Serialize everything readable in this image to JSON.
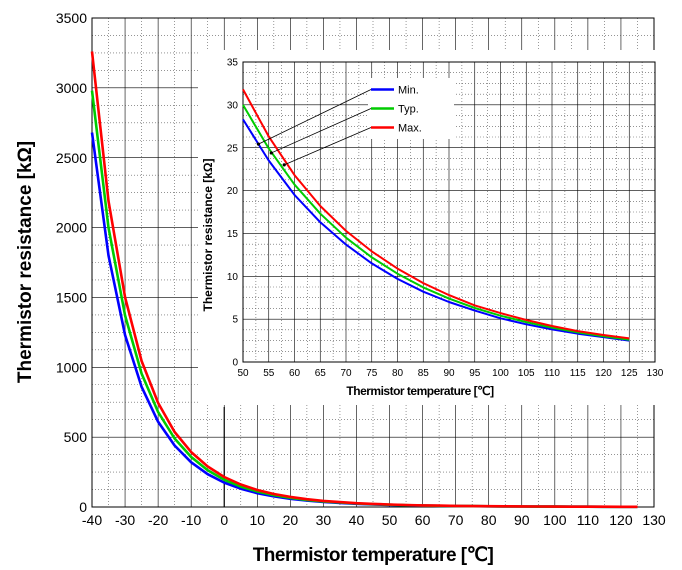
{
  "chart_data": [
    {
      "type": "line",
      "title": "",
      "xlabel": "Thermistor temperature [℃]",
      "ylabel": "Thermistor resistance [kΩ]",
      "xlim": [
        -40,
        130
      ],
      "ylim": [
        0,
        3500
      ],
      "x_ticks": [
        -40,
        -30,
        -20,
        -10,
        0,
        10,
        20,
        30,
        40,
        50,
        60,
        70,
        80,
        90,
        100,
        110,
        120,
        130
      ],
      "y_ticks": [
        0,
        500,
        1000,
        1500,
        2000,
        2500,
        3000,
        3500
      ],
      "grid": true,
      "legend": "none",
      "x": [
        -40,
        -35,
        -30,
        -25,
        -20,
        -15,
        -10,
        -5,
        0,
        5,
        10,
        15,
        20,
        25,
        30,
        35,
        40,
        45,
        50,
        55,
        60,
        65,
        70,
        75,
        80,
        85,
        90,
        95,
        100,
        105,
        110,
        115,
        120,
        125
      ],
      "series": [
        {
          "color": "#0000ff",
          "values": [
            2680,
            1800,
            1230,
            860,
            610,
            440,
            320,
            235,
            175,
            131,
            99,
            76,
            59,
            46,
            36,
            29,
            23,
            18.5,
            15.0,
            12.2,
            10.0,
            8.3,
            6.9,
            5.8,
            4.9,
            4.1,
            3.5,
            3.0,
            2.6,
            2.25,
            1.95,
            1.7,
            1.5,
            1.3
          ]
        },
        {
          "color": "#00cc00",
          "values": [
            2980,
            2000,
            1370,
            955,
            680,
            490,
            358,
            263,
            195,
            146,
            111,
            85,
            66,
            51,
            40,
            32,
            25,
            20,
            16.2,
            13.2,
            10.8,
            8.9,
            7.4,
            6.2,
            5.2,
            4.4,
            3.75,
            3.2,
            2.75,
            2.37,
            2.05,
            1.78,
            1.55,
            1.35
          ]
        },
        {
          "color": "#ff0000",
          "values": [
            3260,
            2190,
            1500,
            1045,
            745,
            537,
            393,
            290,
            215,
            161,
            122,
            93,
            72,
            56,
            44,
            35,
            27.5,
            22,
            17.8,
            14.4,
            11.8,
            9.7,
            8.1,
            6.7,
            5.6,
            4.7,
            4.0,
            3.4,
            2.9,
            2.5,
            2.15,
            1.87,
            1.62,
            1.42
          ]
        }
      ]
    },
    {
      "type": "line",
      "title": "",
      "xlabel": "Thermistor temperature [℃]",
      "ylabel": "Thermistor resistance [kΩ]",
      "xlim": [
        50,
        130
      ],
      "ylim": [
        0,
        35
      ],
      "x_ticks": [
        50,
        55,
        60,
        65,
        70,
        75,
        80,
        85,
        90,
        95,
        100,
        105,
        110,
        115,
        120,
        125,
        130
      ],
      "y_ticks": [
        0,
        5,
        10,
        15,
        20,
        25,
        30,
        35
      ],
      "grid": true,
      "legend": "top-center",
      "x": [
        50,
        55,
        60,
        65,
        70,
        75,
        80,
        85,
        90,
        95,
        100,
        105,
        110,
        115,
        120,
        125
      ],
      "series": [
        {
          "name": "Min.",
          "color": "#0000ff",
          "values": [
            28.3,
            23.5,
            19.5,
            16.3,
            13.7,
            11.5,
            9.7,
            8.2,
            7.0,
            6.0,
            5.1,
            4.4,
            3.8,
            3.3,
            2.9,
            2.5
          ]
        },
        {
          "name": "Typ.",
          "color": "#00cc00",
          "values": [
            30.0,
            24.9,
            20.7,
            17.3,
            14.5,
            12.2,
            10.3,
            8.7,
            7.4,
            6.3,
            5.4,
            4.65,
            4.0,
            3.45,
            3.0,
            2.6
          ]
        },
        {
          "name": "Max.",
          "color": "#ff0000",
          "values": [
            31.8,
            26.3,
            21.8,
            18.2,
            15.3,
            12.9,
            10.9,
            9.2,
            7.8,
            6.6,
            5.7,
            4.9,
            4.2,
            3.6,
            3.15,
            2.75
          ]
        }
      ]
    }
  ]
}
